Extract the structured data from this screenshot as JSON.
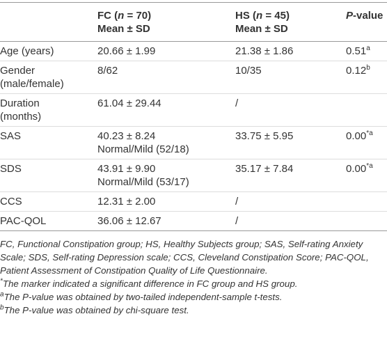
{
  "header": {
    "columns": [
      {
        "pre": "FC (",
        "italic": "n",
        "post": " = 70)",
        "line2": "Mean ± SD"
      },
      {
        "pre": "HS (",
        "italic": "n",
        "post": " = 45)",
        "line2": "Mean ± SD"
      },
      {
        "italic": "P",
        "post": "-value"
      }
    ]
  },
  "table": {
    "rows": [
      {
        "label": "Age (years)",
        "fc": [
          "20.66 ± 1.99"
        ],
        "hs": "21.38 ± 1.86",
        "p": "0.51",
        "p_sup": "a"
      },
      {
        "label": "Gender (male/female)",
        "fc": [
          "8/62"
        ],
        "hs": "10/35",
        "p": "0.12",
        "p_sup": "b"
      },
      {
        "label": "Duration (months)",
        "fc": [
          "61.04 ± 29.44"
        ],
        "hs": "/"
      },
      {
        "label": "SAS",
        "fc": [
          "40.23 ± 8.24",
          "Normal/Mild (52/18)"
        ],
        "hs": "33.75 ± 5.95",
        "p": "0.00",
        "p_sup": "*a"
      },
      {
        "label": "SDS",
        "fc": [
          "43.91 ± 9.90",
          "Normal/Mild (53/17)"
        ],
        "hs": "35.17 ± 7.84",
        "p": "0.00",
        "p_sup": "*a"
      },
      {
        "label": "CCS",
        "fc": [
          "12.31 ± 2.00"
        ],
        "hs": "/"
      },
      {
        "label": "PAC-QOL",
        "fc": [
          "36.06 ± 12.67"
        ],
        "hs": "/"
      }
    ]
  },
  "footnotes": [
    {
      "text": "FC, Functional Constipation group; HS, Healthy Subjects group; SAS, Self-rating Anxiety Scale; SDS, Self-rating Depression scale; CCS, Cleveland Constipation Score; PAC-QOL, Patient Assessment of Constipation Quality of Life Questionnaire."
    },
    {
      "mark": "*",
      "text": "The marker indicated a significant difference in FC group and HS group."
    },
    {
      "mark": "a",
      "text": "The P-value was obtained by two-tailed independent-sample t-tests."
    },
    {
      "mark": "b",
      "text": "The P-value was obtained by chi-square test."
    }
  ]
}
